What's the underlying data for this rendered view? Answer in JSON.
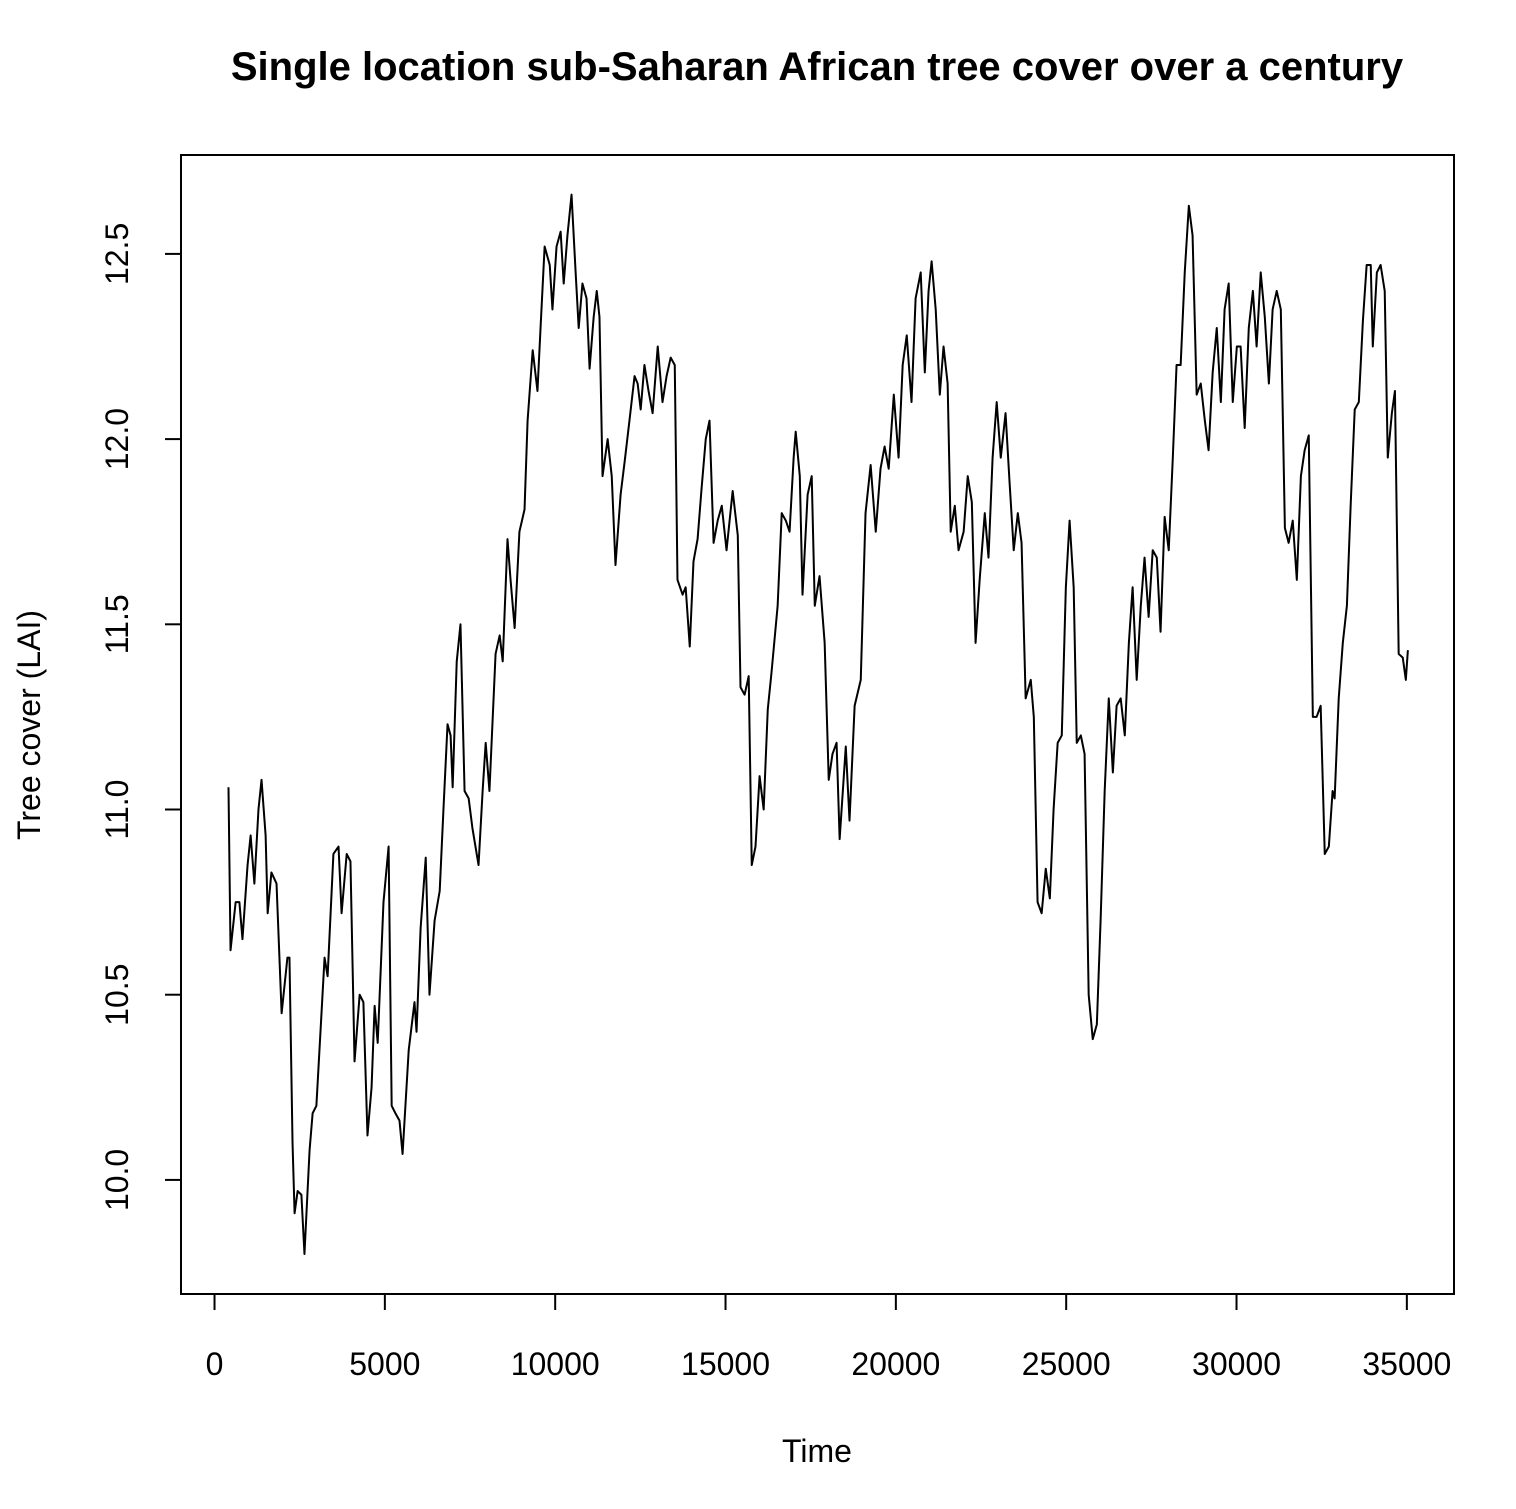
{
  "chart_data": {
    "type": "line",
    "title": "Single location sub-Saharan African tree cover over a century",
    "x_label": "Time",
    "y_label": "Tree cover (LAI)",
    "color": "#000000",
    "xlim": [
      -984,
      36384
    ],
    "ylim": [
      9.692,
      12.767
    ],
    "xticks": [
      0,
      5000,
      10000,
      15000,
      20000,
      25000,
      30000,
      35000
    ],
    "yticks": [
      {
        "value": 10,
        "label": "10.0"
      },
      10.5,
      {
        "value": 11,
        "label": "11.0"
      },
      11.5,
      {
        "value": 12,
        "label": "12.0"
      },
      12.5
    ],
    "x": [
      410,
      470,
      620,
      730,
      820,
      970,
      1060,
      1170,
      1290,
      1380,
      1500,
      1560,
      1670,
      1820,
      1970,
      2140,
      2200,
      2290,
      2350,
      2440,
      2550,
      2640,
      2790,
      2880,
      2990,
      3110,
      3230,
      3320,
      3490,
      3640,
      3730,
      3880,
      3990,
      4110,
      4260,
      4370,
      4490,
      4610,
      4700,
      4790,
      4960,
      5110,
      5200,
      5310,
      5430,
      5520,
      5700,
      5870,
      5930,
      6050,
      6200,
      6310,
      6460,
      6610,
      6720,
      6840,
      6930,
      6990,
      7110,
      7220,
      7340,
      7460,
      7570,
      7750,
      7870,
      7960,
      8070,
      8250,
      8370,
      8460,
      8600,
      8690,
      8810,
      8950,
      9100,
      9190,
      9340,
      9480,
      9570,
      9690,
      9840,
      9920,
      10040,
      10160,
      10250,
      10360,
      10480,
      10600,
      10690,
      10800,
      10920,
      11010,
      11130,
      11220,
      11300,
      11390,
      11540,
      11660,
      11770,
      11920,
      12040,
      12180,
      12330,
      12420,
      12510,
      12620,
      12740,
      12860,
      13010,
      13150,
      13270,
      13390,
      13510,
      13590,
      13740,
      13830,
      13950,
      14060,
      14180,
      14300,
      14420,
      14530,
      14650,
      14770,
      14890,
      15030,
      15210,
      15360,
      15440,
      15560,
      15680,
      15770,
      15880,
      16000,
      16120,
      16240,
      16350,
      16530,
      16650,
      16770,
      16880,
      17000,
      17060,
      17180,
      17260,
      17410,
      17530,
      17620,
      17760,
      17910,
      18030,
      18140,
      18260,
      18350,
      18530,
      18640,
      18790,
      18970,
      19110,
      19260,
      19410,
      19550,
      19670,
      19790,
      19940,
      20080,
      20200,
      20320,
      20460,
      20580,
      20730,
      20850,
      20960,
      21050,
      21170,
      21290,
      21400,
      21520,
      21610,
      21730,
      21840,
      21990,
      22110,
      22230,
      22340,
      22460,
      22610,
      22720,
      22840,
      22960,
      23080,
      23220,
      23340,
      23460,
      23580,
      23690,
      23810,
      23960,
      24050,
      24160,
      24280,
      24400,
      24520,
      24630,
      24750,
      24870,
      24990,
      25100,
      25220,
      25310,
      25430,
      25540,
      25660,
      25780,
      25900,
      26010,
      26130,
      26250,
      26370,
      26480,
      26600,
      26720,
      26840,
      26950,
      27070,
      27190,
      27300,
      27420,
      27540,
      27660,
      27770,
      27890,
      28010,
      28130,
      28240,
      28360,
      28480,
      28600,
      28710,
      28830,
      28950,
      29070,
      29180,
      29300,
      29420,
      29540,
      29650,
      29770,
      29890,
      30010,
      30120,
      30240,
      30360,
      30480,
      30590,
      30710,
      30830,
      30950,
      31060,
      31180,
      31300,
      31420,
      31530,
      31650,
      31770,
      31890,
      32000,
      32120,
      32240,
      32350,
      32470,
      32590,
      32710,
      32820,
      32880,
      33000,
      33120,
      33240,
      33350,
      33470,
      33590,
      33710,
      33820,
      33940,
      34000,
      34120,
      34230,
      34350,
      34440,
      34560,
      34650,
      34760,
      34880,
      34970,
      35030
    ],
    "values": [
      11.06,
      10.62,
      10.75,
      10.75,
      10.65,
      10.85,
      10.93,
      10.8,
      11.0,
      11.08,
      10.93,
      10.72,
      10.83,
      10.8,
      10.45,
      10.6,
      10.6,
      10.1,
      9.91,
      9.97,
      9.96,
      9.8,
      10.08,
      10.18,
      10.2,
      10.4,
      10.6,
      10.55,
      10.88,
      10.9,
      10.72,
      10.88,
      10.86,
      10.32,
      10.5,
      10.48,
      10.12,
      10.25,
      10.47,
      10.37,
      10.75,
      10.9,
      10.2,
      10.18,
      10.16,
      10.07,
      10.35,
      10.48,
      10.4,
      10.68,
      10.87,
      10.5,
      10.7,
      10.78,
      11.0,
      11.23,
      11.2,
      11.06,
      11.4,
      11.5,
      11.05,
      11.03,
      10.95,
      10.85,
      11.05,
      11.18,
      11.05,
      11.42,
      11.47,
      11.4,
      11.73,
      11.62,
      11.49,
      11.75,
      11.81,
      12.05,
      12.24,
      12.13,
      12.3,
      12.52,
      12.47,
      12.35,
      12.52,
      12.56,
      12.42,
      12.55,
      12.66,
      12.45,
      12.3,
      12.42,
      12.38,
      12.19,
      12.33,
      12.4,
      12.33,
      11.9,
      12.0,
      11.9,
      11.66,
      11.85,
      11.94,
      12.05,
      12.17,
      12.15,
      12.08,
      12.2,
      12.13,
      12.07,
      12.25,
      12.1,
      12.17,
      12.22,
      12.2,
      11.62,
      11.58,
      11.6,
      11.44,
      11.67,
      11.73,
      11.87,
      12.0,
      12.05,
      11.72,
      11.78,
      11.82,
      11.7,
      11.86,
      11.74,
      11.33,
      11.31,
      11.36,
      10.85,
      10.9,
      11.09,
      11.0,
      11.27,
      11.37,
      11.55,
      11.8,
      11.78,
      11.75,
      11.95,
      12.02,
      11.9,
      11.58,
      11.85,
      11.9,
      11.55,
      11.63,
      11.45,
      11.08,
      11.15,
      11.18,
      10.92,
      11.17,
      10.97,
      11.28,
      11.35,
      11.8,
      11.93,
      11.75,
      11.92,
      11.98,
      11.92,
      12.12,
      11.95,
      12.2,
      12.28,
      12.1,
      12.38,
      12.45,
      12.18,
      12.4,
      12.48,
      12.35,
      12.12,
      12.25,
      12.15,
      11.75,
      11.82,
      11.7,
      11.75,
      11.9,
      11.83,
      11.45,
      11.62,
      11.8,
      11.68,
      11.95,
      12.1,
      11.95,
      12.07,
      11.88,
      11.7,
      11.8,
      11.72,
      11.3,
      11.35,
      11.25,
      10.75,
      10.72,
      10.84,
      10.76,
      11.0,
      11.18,
      11.2,
      11.6,
      11.78,
      11.6,
      11.18,
      11.2,
      11.15,
      10.5,
      10.38,
      10.42,
      10.7,
      11.05,
      11.3,
      11.1,
      11.28,
      11.3,
      11.2,
      11.45,
      11.6,
      11.35,
      11.55,
      11.68,
      11.52,
      11.7,
      11.68,
      11.48,
      11.79,
      11.7,
      11.95,
      12.2,
      12.2,
      12.45,
      12.63,
      12.55,
      12.12,
      12.15,
      12.05,
      11.97,
      12.18,
      12.3,
      12.1,
      12.35,
      12.42,
      12.1,
      12.25,
      12.25,
      12.03,
      12.3,
      12.4,
      12.25,
      12.45,
      12.33,
      12.15,
      12.35,
      12.4,
      12.35,
      11.76,
      11.72,
      11.78,
      11.62,
      11.9,
      11.97,
      12.01,
      11.25,
      11.25,
      11.28,
      10.88,
      10.9,
      11.05,
      11.03,
      11.3,
      11.45,
      11.55,
      11.82,
      12.08,
      12.1,
      12.32,
      12.47,
      12.47,
      12.25,
      12.45,
      12.47,
      12.4,
      11.95,
      12.07,
      12.13,
      11.42,
      11.41,
      11.35,
      11.43
    ]
  }
}
